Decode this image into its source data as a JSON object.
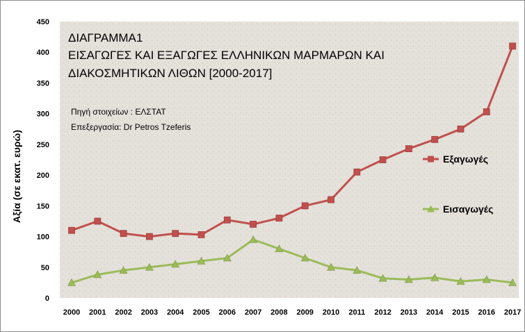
{
  "chart_data": {
    "type": "line",
    "title_lines": [
      "ΔΙΑΓΡΑΜΜΑ1",
      "ΕΙΣΑΓΩΓΕΣ ΚΑΙ ΕΞΑΓΩΓΕΣ ΕΛΛΗΝΙΚΩΝ ΜΑΡΜΑΡΩΝ  ΚΑΙ",
      "ΔΙΑΚΟΣΜΗΤΙΚΩΝ ΛΙΘΩΝ  [2000-2017]"
    ],
    "notes": [
      "Πηγή στοιχείων : ΕΛΣΤΑΤ",
      "Επεξεργασία: Dr Petros Tzeferis"
    ],
    "xlabel": "",
    "ylabel": "Αξία (σε εκατ. ευρώ)",
    "ylim": [
      0,
      450
    ],
    "yticks": [
      0,
      50,
      100,
      150,
      200,
      250,
      300,
      350,
      400,
      450
    ],
    "categories": [
      "2000",
      "2001",
      "2002",
      "2003",
      "2004",
      "2005",
      "2006",
      "2007",
      "2008",
      "2009",
      "2010",
      "2011",
      "2012",
      "2013",
      "2014",
      "2015",
      "2016",
      "2017"
    ],
    "grid": false,
    "legend_position": "right",
    "series": [
      {
        "name": "Εξαγωγές",
        "marker": "square",
        "color": "#c0504d",
        "values": [
          110,
          125,
          105,
          100,
          105,
          103,
          127,
          120,
          130,
          150,
          160,
          205,
          225,
          243,
          258,
          275,
          303,
          410
        ]
      },
      {
        "name": "Εισαγωγές",
        "marker": "triangle",
        "color": "#9bbb59",
        "values": [
          25,
          38,
          45,
          50,
          55,
          60,
          65,
          95,
          80,
          65,
          50,
          45,
          32,
          30,
          33,
          27,
          30,
          25
        ]
      }
    ]
  }
}
